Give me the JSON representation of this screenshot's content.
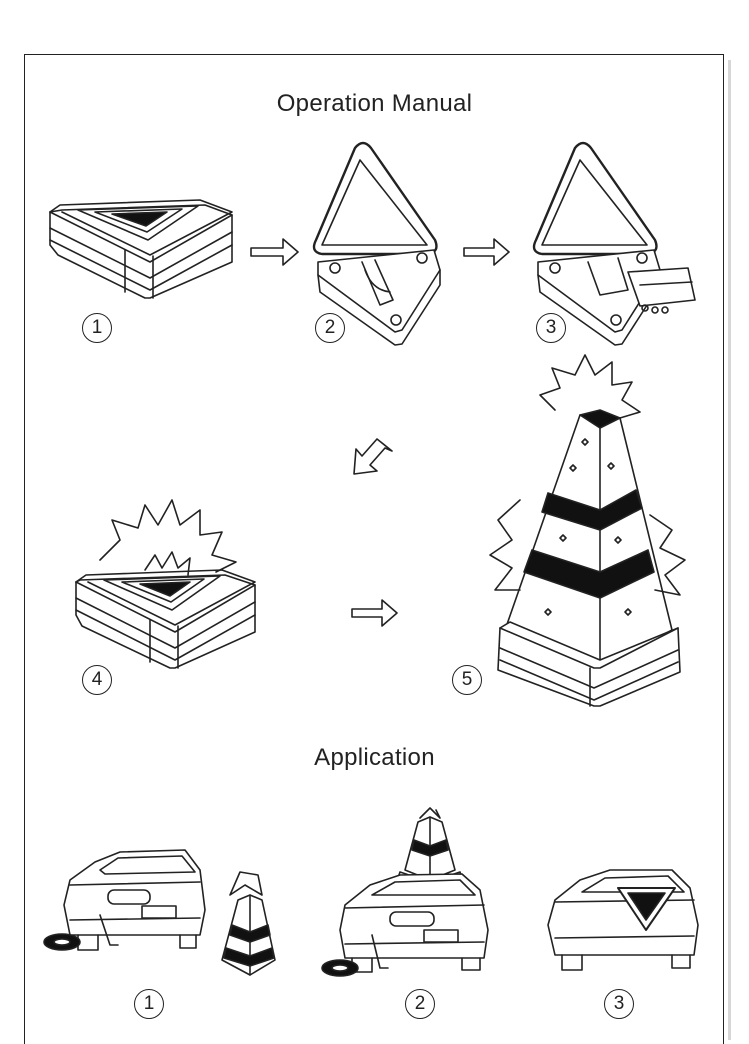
{
  "titles": {
    "operation": "Operation Manual",
    "application": "Application"
  },
  "operation_steps": [
    {
      "num": "1",
      "illustration": "closed-triangle-light"
    },
    {
      "num": "2",
      "illustration": "opened-lid-battery-compartment"
    },
    {
      "num": "3",
      "illustration": "inserting-batteries"
    },
    {
      "num": "4",
      "illustration": "glowing-triangle-light"
    },
    {
      "num": "5",
      "illustration": "expanded-warning-cone"
    }
  ],
  "application_steps": [
    {
      "num": "1",
      "illustration": "car-tire-change-with-cone"
    },
    {
      "num": "2",
      "illustration": "car-with-cone-on-roof"
    },
    {
      "num": "3",
      "illustration": "car-with-triangle-on-rear"
    }
  ],
  "icons": [
    "arrow-right-icon",
    "arrow-down-left-icon",
    "burst-icon"
  ],
  "colors": {
    "line": "#222222",
    "fill_dark": "#111111",
    "background": "#ffffff"
  }
}
